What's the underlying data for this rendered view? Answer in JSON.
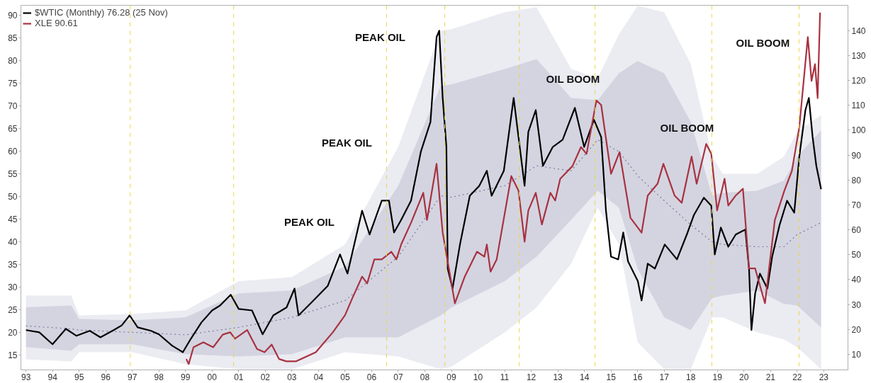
{
  "chart_data": {
    "type": "line",
    "xlim": [
      1992.81,
      2023.91
    ],
    "ylim": [
      11.7,
      92.2
    ],
    "y2lim": [
      3.7,
      150.2
    ],
    "xticks": [
      {
        "value": 1993,
        "label": "93"
      },
      {
        "value": 1994,
        "label": "94"
      },
      {
        "value": 1995,
        "label": "95"
      },
      {
        "value": 1996,
        "label": "96"
      },
      {
        "value": 1997,
        "label": "97"
      },
      {
        "value": 1998,
        "label": "98"
      },
      {
        "value": 1999,
        "label": "99"
      },
      {
        "value": 2000,
        "label": "00"
      },
      {
        "value": 2001,
        "label": "01"
      },
      {
        "value": 2002,
        "label": "02"
      },
      {
        "value": 2003,
        "label": "03"
      },
      {
        "value": 2004,
        "label": "04"
      },
      {
        "value": 2005,
        "label": "05"
      },
      {
        "value": 2006,
        "label": "06"
      },
      {
        "value": 2007,
        "label": "07"
      },
      {
        "value": 2008,
        "label": "08"
      },
      {
        "value": 2009,
        "label": "09"
      },
      {
        "value": 2010,
        "label": "10"
      },
      {
        "value": 2011,
        "label": "11"
      },
      {
        "value": 2012,
        "label": "12"
      },
      {
        "value": 2013,
        "label": "13"
      },
      {
        "value": 2014,
        "label": "14"
      },
      {
        "value": 2015,
        "label": "15"
      },
      {
        "value": 2016,
        "label": "16"
      },
      {
        "value": 2017,
        "label": "17"
      },
      {
        "value": 2018,
        "label": "18"
      },
      {
        "value": 2019,
        "label": "19"
      },
      {
        "value": 2020,
        "label": "20"
      },
      {
        "value": 2021,
        "label": "21"
      },
      {
        "value": 2022,
        "label": "22"
      },
      {
        "value": 2023,
        "label": "23"
      }
    ],
    "yticks": [
      15,
      20,
      25,
      30,
      35,
      40,
      45,
      50,
      55,
      60,
      65,
      70,
      75,
      80,
      85,
      90
    ],
    "y2ticks": [
      10,
      20,
      30,
      40,
      50,
      60,
      70,
      80,
      90,
      100,
      110,
      120,
      130,
      140
    ],
    "legend": "top left",
    "series": [
      {
        "color": "#9a9ac0",
        "axis": "y2",
        "x": [
          1993,
          1994.7,
          1995,
          1997,
          1999,
          2001,
          2003,
          2005,
          2007,
          2008.6,
          2009,
          2011,
          2012.2,
          2013.5,
          2014.5,
          2015.3,
          2016,
          2017,
          2018,
          2018.8,
          2019.2,
          2020.5,
          2021.5,
          2022,
          2022.9
        ],
        "values": [
          null,
          null,
          null,
          null,
          null,
          null,
          null,
          null,
          null,
          null,
          null,
          null,
          null,
          null,
          null,
          null,
          null,
          null,
          null,
          null,
          null,
          null,
          null,
          null,
          null
        ],
        "lower": [
          8.0,
          7.1,
          10.8,
          10.8,
          6.0,
          4,
          4,
          10.8,
          9.1,
          4,
          5,
          18.8,
          28.8,
          46.4,
          68.9,
          54.1,
          14.8,
          4,
          4,
          24.8,
          24.8,
          18.8,
          16.0,
          12.8,
          4
        ],
        "upper": [
          33.6,
          33.6,
          25.6,
          26.2,
          27.6,
          39.3,
          41,
          54.1,
          93.3,
          140,
          140.6,
          147.4,
          149.4,
          124.6,
          120.9,
          138.6,
          150,
          147.4,
          126.6,
          89.4,
          82.5,
          82.5,
          89.4,
          99.3,
          106.1
        ]
      },
      {
        "color": "#7a7aa0",
        "axis": "y2",
        "line_style": "dotted",
        "x": [
          1993,
          1994.7,
          1995,
          1997,
          1999,
          2001,
          2003,
          2005,
          2007,
          2008.6,
          2009,
          2011,
          2012.2,
          2013.5,
          2014.5,
          2015.3,
          2016,
          2017,
          2018,
          2018.8,
          2019.2,
          2020.5,
          2021.5,
          2022,
          2022.9
        ],
        "values": [
          21.4,
          20.2,
          19.7,
          18.8,
          17.8,
          20.8,
          24.8,
          31.6,
          49.2,
          73.7,
          73.1,
          77.7,
          85.7,
          83.7,
          96.2,
          91.4,
          81.7,
          71.7,
          62.0,
          55.2,
          54.1,
          53.2,
          53.2,
          58.1,
          62.9
        ],
        "lower": [
          12.9,
          11.4,
          14.0,
          14.0,
          10.0,
          9.1,
          10.0,
          16.8,
          16.8,
          25.6,
          28.8,
          39.3,
          49.2,
          64.0,
          75.7,
          68.9,
          44.4,
          24.8,
          19.7,
          32.5,
          33.6,
          35.6,
          30.2,
          29.6,
          20.8
        ],
        "upper": [
          28.9,
          29.6,
          24.2,
          23.6,
          24.8,
          34.4,
          35.6,
          45.3,
          77.7,
          117.8,
          118.4,
          124.6,
          128.6,
          113,
          112.1,
          122.9,
          127.8,
          122.9,
          103.3,
          73.7,
          74.9,
          75.7,
          79.7,
          89.4,
          100
        ]
      },
      {
        "name": "$WTIC (Monthly) 76.28 (25 Nov)",
        "color": "#000000",
        "axis": "y2",
        "x": [
          1993.0,
          1993.5,
          1994.0,
          1994.5,
          1994.9,
          1995.4,
          1995.8,
          1996.3,
          1996.6,
          1996.9,
          1997.2,
          1997.7,
          1998.0,
          1998.5,
          1998.9,
          1999.2,
          1999.6,
          2000.0,
          2000.3,
          2000.7,
          2001.0,
          2001.5,
          2001.9,
          2002.3,
          2002.8,
          2003.1,
          2003.25,
          2003.71,
          2004.35,
          2004.81,
          2005.09,
          2005.64,
          2005.92,
          2006.38,
          2006.65,
          2006.84,
          2007.11,
          2007.48,
          2007.85,
          2008.21,
          2008.44,
          2008.54,
          2008.67,
          2008.81,
          2008.86,
          2009.04,
          2009.32,
          2009.69,
          2010.05,
          2010.33,
          2010.51,
          2010.97,
          2011.34,
          2011.52,
          2011.75,
          2011.89,
          2012.17,
          2012.44,
          2012.81,
          2013.18,
          2013.64,
          2013.99,
          2014.36,
          2014.63,
          2014.81,
          2015.0,
          2015.27,
          2015.46,
          2015.64,
          2016.01,
          2016.15,
          2016.38,
          2016.65,
          2017.02,
          2017.48,
          2017.85,
          2018.12,
          2018.49,
          2018.77,
          2018.9,
          2019.13,
          2019.41,
          2019.69,
          2020.05,
          2020.19,
          2020.28,
          2020.42,
          2020.6,
          2020.88,
          2021.06,
          2021.34,
          2021.62,
          2021.89,
          2022.08,
          2022.31,
          2022.44,
          2022.58,
          2022.72,
          2022.9
        ],
        "values": [
          19.7,
          18.8,
          14,
          20.2,
          17.4,
          19.4,
          16.8,
          19.7,
          21.6,
          25.6,
          20.8,
          19.4,
          18,
          13.4,
          10.8,
          16.2,
          22.8,
          27.6,
          29.6,
          33.9,
          28.2,
          27.6,
          18,
          25.6,
          28.8,
          36.4,
          25.6,
          30.5,
          37.5,
          50.1,
          42.4,
          67.7,
          58.1,
          71.7,
          71.7,
          58.9,
          64.0,
          71.7,
          91.4,
          103.3,
          137.4,
          140,
          113,
          93.3,
          44.4,
          36.4,
          54.1,
          73.7,
          77.7,
          83.7,
          73.7,
          83.7,
          113,
          97.3,
          77.7,
          99.3,
          108.1,
          85.7,
          93.3,
          96.2,
          109,
          93.3,
          104.2,
          97.3,
          67.7,
          49.2,
          48.1,
          58.9,
          47.3,
          39.3,
          31.6,
          46.4,
          44.4,
          54.1,
          48.1,
          58.1,
          66.0,
          72.9,
          69.7,
          50.1,
          60.9,
          53.2,
          58.1,
          60.1,
          44.4,
          19.7,
          34.4,
          42.4,
          36.4,
          49.2,
          62.0,
          71.7,
          66.9,
          89.4,
          108.1,
          113,
          97.3,
          85.7,
          76.3
        ]
      },
      {
        "name": "XLE 90.61",
        "color": "#a83240",
        "x": [
          1999.03,
          1999.12,
          1999.3,
          1999.67,
          2000.04,
          2000.4,
          2000.68,
          2000.86,
          2001.32,
          2001.69,
          2001.97,
          2002.24,
          2002.52,
          2002.79,
          2003.16,
          2003.9,
          2004.54,
          2005.0,
          2005.27,
          2005.64,
          2005.83,
          2006.1,
          2006.38,
          2006.74,
          2006.93,
          2007.11,
          2007.48,
          2007.94,
          2008.08,
          2008.44,
          2008.67,
          2009.13,
          2009.5,
          2009.96,
          2010.24,
          2010.33,
          2010.47,
          2010.7,
          2011.25,
          2011.52,
          2011.75,
          2011.89,
          2012.17,
          2012.4,
          2012.72,
          2012.9,
          2013.09,
          2013.55,
          2013.87,
          2014.08,
          2014.45,
          2014.63,
          2015.0,
          2015.32,
          2015.73,
          2016.15,
          2016.38,
          2016.75,
          2016.97,
          2017.39,
          2017.66,
          2018.03,
          2018.22,
          2018.58,
          2018.77,
          2018.99,
          2019.27,
          2019.41,
          2019.69,
          2019.96,
          2020.19,
          2020.42,
          2020.79,
          2021.16,
          2021.52,
          2021.8,
          2022.08,
          2022.4,
          2022.54,
          2022.67,
          2022.77,
          2022.86
        ],
        "values": [
          14.1,
          13.0,
          16.7,
          17.8,
          16.7,
          19.5,
          20.0,
          18.6,
          20.5,
          16.3,
          15.6,
          17.3,
          14.1,
          13.6,
          13.6,
          15.6,
          20.0,
          23.8,
          27.5,
          32.3,
          30.8,
          36.1,
          36.1,
          37.8,
          36.1,
          39.4,
          44.2,
          50.8,
          44.8,
          57.2,
          42.0,
          26.4,
          32.3,
          37.8,
          36.7,
          39.4,
          33.4,
          36.1,
          54.5,
          51.3,
          40.0,
          46.9,
          50.8,
          43.8,
          50.8,
          49.1,
          53.9,
          56.7,
          60.9,
          59.4,
          71.2,
          70.2,
          55.0,
          59.8,
          45.3,
          42.0,
          50.2,
          52.8,
          57.2,
          50.2,
          48.6,
          58.8,
          52.8,
          61.6,
          59.4,
          46.9,
          53.9,
          48.0,
          50.2,
          51.7,
          34.1,
          34.1,
          26.4,
          44.8,
          51.3,
          55.6,
          65.3,
          85.2,
          75.5,
          79.2,
          71.7,
          90.6
        ]
      }
    ],
    "ref_lines": [
      {
        "axis": "x",
        "value": 1996.92,
        "color": "#e8d84a",
        "line_style": "dashed"
      },
      {
        "axis": "x",
        "value": 2000.81,
        "color": "#e8d84a",
        "line_style": "dashed"
      },
      {
        "axis": "x",
        "value": 2006.56,
        "color": "#e8d84a",
        "line_style": "dashed"
      },
      {
        "axis": "x",
        "value": 2008.75,
        "color": "#e8d84a",
        "line_style": "dashed"
      },
      {
        "axis": "x",
        "value": 2011.55,
        "color": "#e8d84a",
        "line_style": "dashed"
      },
      {
        "axis": "x",
        "value": 2014.4,
        "color": "#e8d84a",
        "line_style": "dashed"
      },
      {
        "axis": "x",
        "value": 2018.79,
        "color": "#e8d84a",
        "line_style": "dashed"
      },
      {
        "axis": "x",
        "value": 2022.07,
        "color": "#e8d84a",
        "line_style": "dashed"
      }
    ],
    "annotations": [
      "PEAK OIL",
      "PEAK OIL",
      "PEAK OIL",
      "OIL BOOM",
      "OIL BOOM",
      "OIL BOOM"
    ]
  }
}
